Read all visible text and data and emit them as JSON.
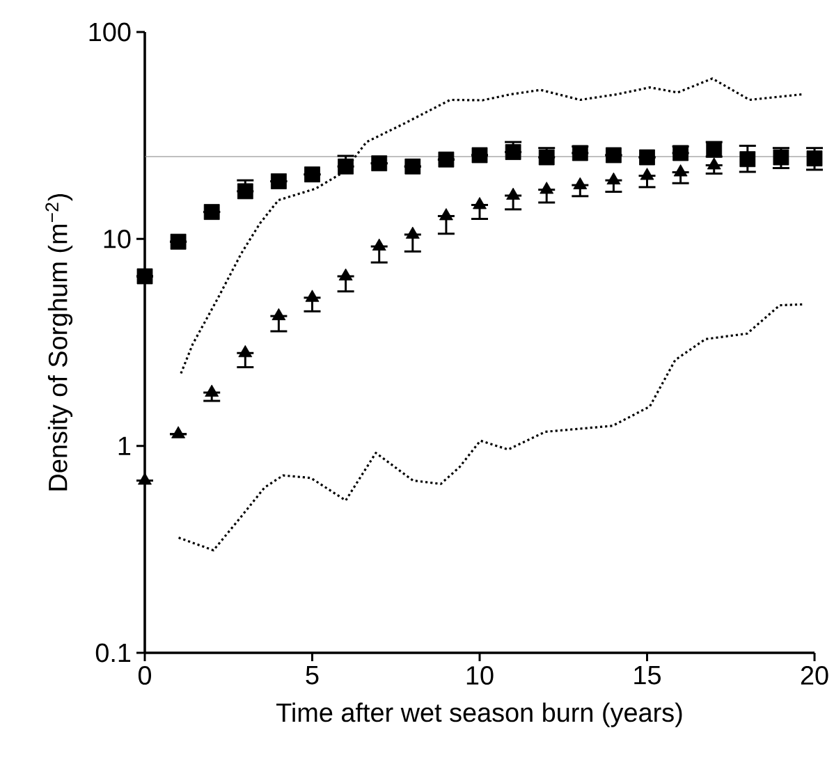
{
  "chart_data": {
    "type": "scatter",
    "xlabel": "Time after wet season burn (years)",
    "ylabel": "Density of Sorghum (m$^{−2}$)",
    "log": "y",
    "xlim": [
      0,
      20
    ],
    "ylim": [
      0.1,
      100
    ],
    "xticks": [
      0,
      5,
      10,
      15,
      20
    ],
    "yticks": [
      0.1,
      1,
      10,
      100
    ],
    "ref_lines": [
      {
        "axis": "y",
        "value": 25,
        "color": "#808080"
      }
    ],
    "series": [
      {
        "marker": "square",
        "color": "#000000",
        "x": [
          0,
          1,
          2,
          3,
          4,
          5,
          6,
          7,
          8,
          9,
          10,
          11,
          12,
          13,
          14,
          15,
          16,
          17,
          18,
          19,
          20
        ],
        "values": [
          6.6,
          9.7,
          13.5,
          17,
          19,
          20.5,
          22.4,
          23.2,
          22.4,
          24.2,
          25.4,
          26.3,
          24.8,
          26,
          25.4,
          24.8,
          26,
          27,
          24.3,
          24.8,
          24.5
        ],
        "errors": [
          null,
          null,
          null,
          [
            17,
            19.2
          ],
          null,
          null,
          [
            22.4,
            25.2
          ],
          null,
          null,
          null,
          null,
          [
            26.3,
            29.4
          ],
          [
            24.8,
            27.5
          ],
          [
            26,
            28
          ],
          null,
          null,
          [
            26,
            28
          ],
          [
            25,
            29.4
          ],
          [
            21.1,
            28.2
          ],
          [
            22,
            27.5
          ],
          [
            21.6,
            27.5
          ]
        ]
      },
      {
        "marker": "triangle",
        "color": "#000000",
        "x": [
          0,
          1,
          2,
          3,
          4,
          5,
          6,
          7,
          8,
          9,
          10,
          11,
          12,
          13,
          14,
          15,
          16,
          17
        ],
        "values": [
          0.68,
          1.14,
          1.81,
          2.81,
          4.24,
          5.2,
          6.6,
          9.2,
          10.5,
          12.9,
          14.6,
          16.2,
          17.3,
          18.2,
          19.2,
          20.2,
          21,
          22.7
        ],
        "errors": [
          null,
          null,
          [
            1.65,
            1.81
          ],
          [
            2.4,
            2.81
          ],
          [
            3.58,
            4.24
          ],
          [
            4.47,
            5.2
          ],
          [
            5.58,
            6.6
          ],
          [
            7.7,
            9.2
          ],
          [
            8.7,
            10.5
          ],
          [
            10.6,
            12.9
          ],
          [
            12.5,
            14.6
          ],
          [
            13.9,
            16.2
          ],
          [
            15,
            17.3
          ],
          [
            16.1,
            18.2
          ],
          [
            16.9,
            19.2
          ],
          [
            17.8,
            20.2
          ],
          [
            18.6,
            21
          ],
          [
            20.7,
            22.7
          ]
        ]
      },
      {
        "type": "line",
        "line_style": "dotted",
        "marker": "none",
        "color": "#000000",
        "x": [
          1.08,
          1.43,
          2.19,
          2.88,
          3.44,
          3.99,
          5.1,
          5.93,
          6.62,
          7.73,
          9.12,
          10.09,
          10.93,
          11.82,
          13.0,
          14.1,
          15.08,
          15.91,
          16.95,
          18.06,
          19.65
        ],
        "values": [
          2.24,
          3.1,
          5.2,
          8.5,
          11.9,
          15.4,
          17.5,
          21,
          29.4,
          36,
          47,
          46.8,
          50,
          52.5,
          47,
          50,
          54,
          51,
          59.6,
          47,
          50
        ]
      },
      {
        "type": "line",
        "line_style": "dotted",
        "marker": "none",
        "color": "#000000",
        "x": [
          1.01,
          2.05,
          2.74,
          3.58,
          4.13,
          4.96,
          6.0,
          6.9,
          8.01,
          8.84,
          9.4,
          10.02,
          10.85,
          11.96,
          13.97,
          15.08,
          15.84,
          16.74,
          17.99,
          18.96,
          19.65
        ],
        "values": [
          0.36,
          0.313,
          0.427,
          0.63,
          0.72,
          0.7,
          0.545,
          0.925,
          0.68,
          0.655,
          0.79,
          1.06,
          0.96,
          1.17,
          1.25,
          1.55,
          2.6,
          3.28,
          3.49,
          4.78,
          4.83
        ]
      }
    ]
  }
}
